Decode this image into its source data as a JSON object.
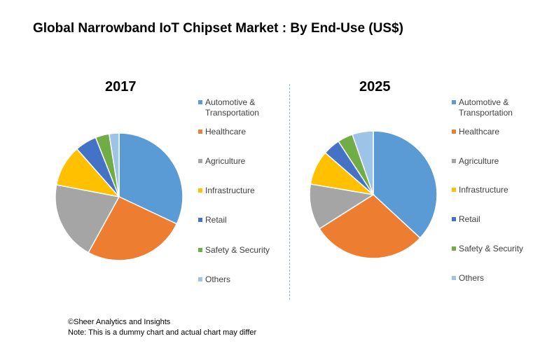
{
  "title": "Global Narrowband IoT Chipset Market : By End-Use (US$)",
  "colors": {
    "Automotive & Transportation": "#5b9bd5",
    "Healthcare": "#ed7d31",
    "Agriculture": "#a5a5a5",
    "Infrastructure": "#ffc000",
    "Retail": "#4472c4",
    "Safety & Security": "#70ad47",
    "Others": "#9dc3e6"
  },
  "chart_data": [
    {
      "type": "pie",
      "title": "2017",
      "labels": [
        "Automotive & Transportation",
        "Healthcare",
        "Agriculture",
        "Infrastructure",
        "Retail",
        "Safety & Security",
        "Others"
      ],
      "values": [
        32,
        26,
        20,
        10.5,
        5.5,
        3.5,
        2.5
      ],
      "legend_position": "right"
    },
    {
      "type": "pie",
      "title": "2025",
      "labels": [
        "Automotive & Transportation",
        "Healthcare",
        "Agriculture",
        "Infrastructure",
        "Retail",
        "Safety & Security",
        "Others"
      ],
      "values": [
        38,
        30,
        12,
        9,
        4.5,
        4,
        5.5
      ],
      "legend_position": "right"
    }
  ],
  "footer": {
    "copyright": "©Sheer Analytics and Insights",
    "note": "Note: This is a dummy chart and actual chart may differ"
  }
}
